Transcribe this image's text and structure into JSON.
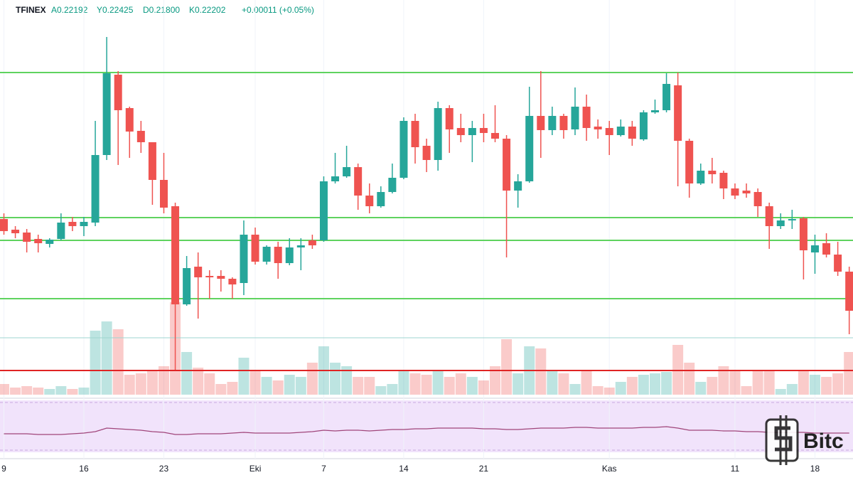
{
  "chart_data": {
    "type": "candlestick",
    "header": {
      "exchange": "TFINEX",
      "open": "A0.22192",
      "high": "Y0.22425",
      "low": "D0.21800",
      "close": "K0.22202",
      "change": "+0.00011 (+0.05%)"
    },
    "categories": [
      "9",
      null,
      null,
      null,
      null,
      null,
      null,
      "16",
      null,
      null,
      null,
      null,
      null,
      null,
      "23",
      null,
      null,
      null,
      null,
      null,
      null,
      null,
      "Eki",
      null,
      null,
      null,
      null,
      null,
      "7",
      null,
      null,
      null,
      null,
      null,
      null,
      "14",
      null,
      null,
      null,
      null,
      null,
      null,
      "21",
      null,
      null,
      null,
      null,
      null,
      null,
      null,
      null,
      null,
      null,
      "Kas",
      null,
      null,
      null,
      null,
      null,
      null,
      null,
      null,
      null,
      null,
      "11",
      null,
      null,
      null,
      null,
      null,
      null,
      "18",
      null,
      null,
      null,
      null
    ],
    "series": {
      "open": [
        0.2367,
        0.2352,
        0.2348,
        0.2339,
        0.2332,
        0.2339,
        0.2363,
        0.2357,
        0.2362,
        0.2457,
        0.257,
        0.2523,
        0.2491,
        0.2475,
        0.2422,
        0.2385,
        0.2247,
        0.23,
        0.2287,
        0.2287,
        0.2283,
        0.2277,
        0.2345,
        0.2307,
        0.2328,
        0.2305,
        0.2327,
        0.2337,
        0.2337,
        0.242,
        0.2427,
        0.244,
        0.24,
        0.2385,
        0.2405,
        0.2425,
        0.2505,
        0.247,
        0.245,
        0.2523,
        0.2495,
        0.2485,
        0.2495,
        0.2488,
        0.248,
        0.2407,
        0.242,
        0.2512,
        0.2492,
        0.2512,
        0.2493,
        0.2525,
        0.2497,
        0.2495,
        0.2485,
        0.2497,
        0.2479,
        0.2517,
        0.252,
        0.2555,
        0.2477,
        0.2417,
        0.2435,
        0.2432,
        0.241,
        0.2407,
        0.2405,
        0.2385,
        0.2357,
        0.2365,
        0.2368,
        0.232,
        0.2333,
        0.2317,
        0.2293
      ],
      "high": [
        0.2375,
        0.2357,
        0.2353,
        0.2345,
        0.234,
        0.2375,
        0.237,
        0.237,
        0.2505,
        0.2623,
        0.2575,
        0.2525,
        0.2505,
        0.2475,
        0.246,
        0.239,
        0.2315,
        0.232,
        0.2295,
        0.2295,
        0.2285,
        0.2365,
        0.2355,
        0.233,
        0.2335,
        0.234,
        0.234,
        0.2345,
        0.2427,
        0.246,
        0.247,
        0.2445,
        0.2417,
        0.2413,
        0.2445,
        0.251,
        0.2515,
        0.248,
        0.2532,
        0.2527,
        0.2515,
        0.2505,
        0.2515,
        0.2527,
        0.2485,
        0.243,
        0.2553,
        0.2575,
        0.2525,
        0.2515,
        0.2552,
        0.2542,
        0.2507,
        0.2505,
        0.2507,
        0.2505,
        0.252,
        0.2535,
        0.2572,
        0.2573,
        0.248,
        0.2445,
        0.2453,
        0.2435,
        0.2417,
        0.2417,
        0.241,
        0.239,
        0.2375,
        0.238,
        0.237,
        0.2345,
        0.2347,
        0.2335,
        0.23
      ],
      "low": [
        0.2345,
        0.234,
        0.232,
        0.232,
        0.2327,
        0.2337,
        0.235,
        0.2343,
        0.2357,
        0.245,
        0.2443,
        0.2453,
        0.246,
        0.2387,
        0.2375,
        0.2155,
        0.2245,
        0.2227,
        0.2255,
        0.2265,
        0.2255,
        0.226,
        0.2303,
        0.2303,
        0.2283,
        0.2302,
        0.2295,
        0.2325,
        0.2335,
        0.2417,
        0.2425,
        0.238,
        0.2375,
        0.2383,
        0.2403,
        0.2423,
        0.2445,
        0.2433,
        0.2435,
        0.246,
        0.2475,
        0.2447,
        0.2475,
        0.2475,
        0.2313,
        0.2383,
        0.2418,
        0.2453,
        0.2485,
        0.248,
        0.2485,
        0.2477,
        0.248,
        0.2457,
        0.2483,
        0.247,
        0.2477,
        0.2515,
        0.2517,
        0.2413,
        0.2397,
        0.2415,
        0.2417,
        0.2395,
        0.2395,
        0.2397,
        0.237,
        0.2325,
        0.2353,
        0.2353,
        0.2282,
        0.229,
        0.2313,
        0.2287,
        0.2205
      ],
      "close": [
        0.235,
        0.2347,
        0.2335,
        0.2333,
        0.2338,
        0.2362,
        0.2357,
        0.2363,
        0.2457,
        0.2572,
        0.252,
        0.249,
        0.2475,
        0.2422,
        0.2383,
        0.2247,
        0.2298,
        0.2285,
        0.2285,
        0.2283,
        0.2275,
        0.2345,
        0.2307,
        0.2328,
        0.2305,
        0.2327,
        0.233,
        0.233,
        0.242,
        0.2427,
        0.244,
        0.24,
        0.2385,
        0.2405,
        0.2425,
        0.2505,
        0.2468,
        0.245,
        0.2523,
        0.2493,
        0.2485,
        0.2495,
        0.2488,
        0.248,
        0.2407,
        0.242,
        0.2512,
        0.2492,
        0.2512,
        0.2492,
        0.2525,
        0.2495,
        0.2493,
        0.2485,
        0.2497,
        0.248,
        0.2517,
        0.252,
        0.2557,
        0.2477,
        0.2417,
        0.2435,
        0.243,
        0.241,
        0.24,
        0.2403,
        0.2385,
        0.2357,
        0.2365,
        0.2367,
        0.2323,
        0.233,
        0.2317,
        0.2293,
        0.2238
      ]
    },
    "up_color": "#26a69a",
    "down_color": "#ef5350",
    "ylim": [
      0.215,
      0.2675
    ],
    "levels": [
      {
        "value": 0.2573,
        "color": "#5fd35f"
      },
      {
        "value": 0.2369,
        "color": "#5fd35f"
      },
      {
        "value": 0.2337,
        "color": "#5fd35f"
      },
      {
        "value": 0.2255,
        "color": "#5fd35f"
      },
      {
        "value": 0.22,
        "color": "#9fd6d0"
      },
      {
        "value": 0.2154,
        "color": "#e02424"
      }
    ],
    "volume": {
      "ylim": [
        0,
        130
      ],
      "values": [
        15,
        10,
        12,
        10,
        8,
        12,
        8,
        10,
        90,
        103,
        92,
        28,
        30,
        35,
        40,
        130,
        60,
        38,
        30,
        15,
        18,
        52,
        35,
        25,
        20,
        28,
        25,
        45,
        68,
        45,
        40,
        25,
        25,
        12,
        15,
        35,
        30,
        28,
        35,
        25,
        30,
        25,
        20,
        40,
        78,
        30,
        68,
        65,
        35,
        30,
        15,
        35,
        12,
        10,
        18,
        25,
        28,
        30,
        32,
        70,
        45,
        18,
        25,
        40,
        35,
        12,
        35,
        35,
        8,
        15,
        35,
        28,
        25,
        30,
        60
      ]
    },
    "indicator": {
      "color": "#a0457a",
      "ylim": [
        0,
        70
      ],
      "values": [
        25,
        25,
        25,
        24,
        24,
        24,
        25,
        26,
        28,
        33,
        32,
        31,
        30,
        28,
        27,
        24,
        24,
        25,
        25,
        25,
        26,
        27,
        26,
        26,
        26,
        26,
        27,
        28,
        30,
        29,
        30,
        30,
        29,
        30,
        31,
        31,
        32,
        32,
        33,
        33,
        33,
        33,
        32,
        32,
        31,
        31,
        32,
        33,
        33,
        33,
        34,
        34,
        33,
        33,
        33,
        33,
        34,
        34,
        35,
        33,
        30,
        30,
        30,
        29,
        29,
        28,
        28,
        27,
        27,
        27,
        27,
        26,
        26,
        26,
        26
      ]
    },
    "grid": true,
    "watermark": "Bitc"
  }
}
